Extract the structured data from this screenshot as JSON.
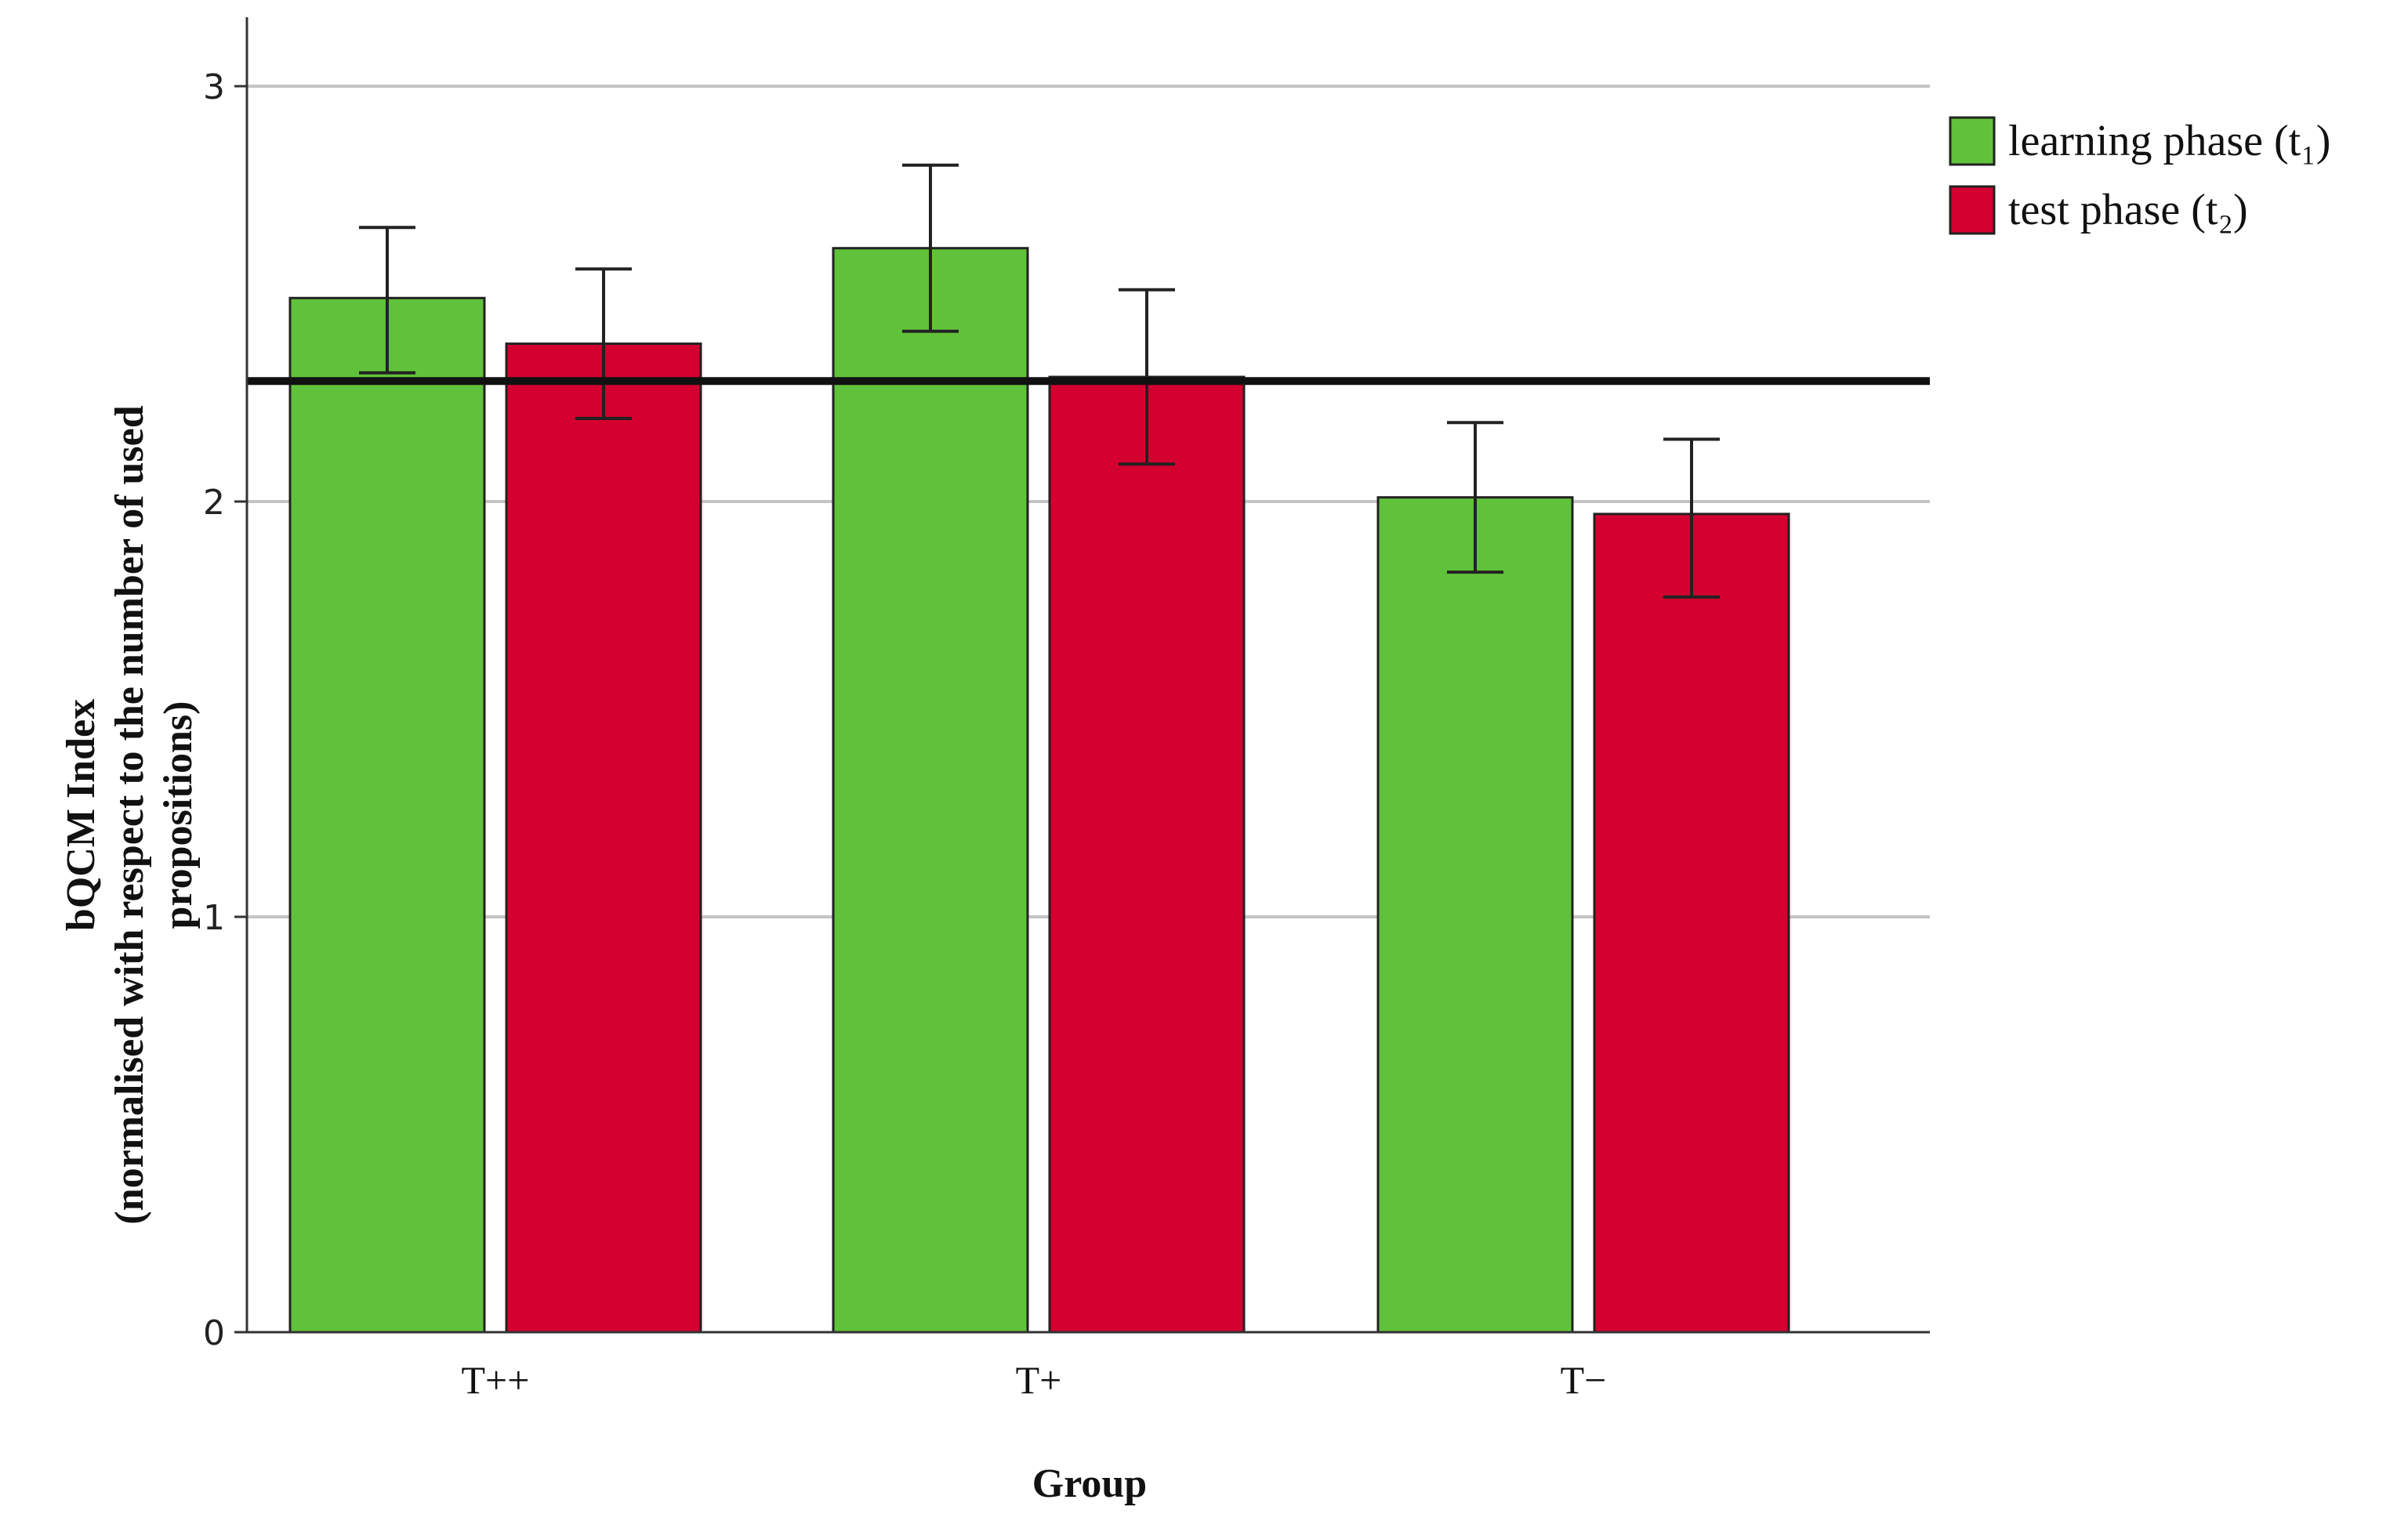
{
  "chart_data": {
    "type": "bar",
    "categories": [
      "T++",
      "T+",
      "T−"
    ],
    "series": [
      {
        "name": "learning phase (t₁)",
        "color": "#60c23a",
        "values": [
          2.49,
          2.61,
          2.01
        ],
        "error_low": [
          2.31,
          2.41,
          1.83
        ],
        "error_high": [
          2.66,
          2.81,
          2.19
        ]
      },
      {
        "name": "test phase (t₂)",
        "color": "#d4002f",
        "values": [
          2.38,
          2.3,
          1.97
        ],
        "error_low": [
          2.2,
          2.09,
          1.77
        ],
        "error_high": [
          2.56,
          2.51,
          2.15
        ]
      }
    ],
    "reference_line": 2.29,
    "ylim": [
      0,
      3.15
    ],
    "yticks": [
      0,
      1,
      2,
      3
    ],
    "grid": true,
    "xlabel": "Group",
    "ylabel_lines": [
      "bQCM Index",
      "(normalised with respect to the number of used",
      "propositions)"
    ],
    "legend_position": "top-right"
  }
}
